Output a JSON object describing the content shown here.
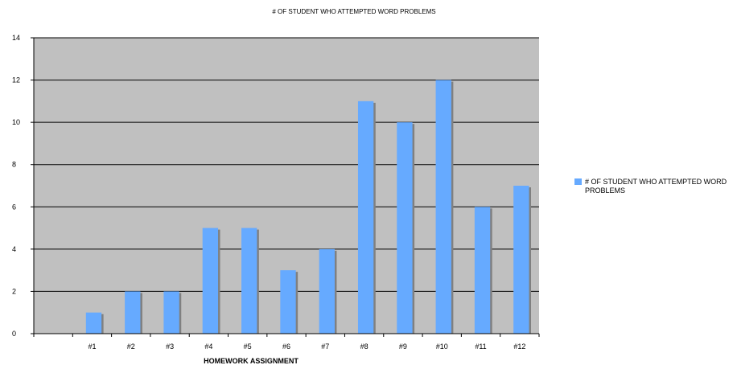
{
  "chart_data": {
    "type": "bar",
    "title": "# OF STUDENT WHO ATTEMPTED WORD PROBLEMS",
    "xlabel": "HOMEWORK ASSIGNMENT",
    "ylabel": "",
    "categories": [
      "",
      "#1",
      "#2",
      "#3",
      "#4",
      "#5",
      "#6",
      "#7",
      "#8",
      "#9",
      "#10",
      "#11",
      "#12"
    ],
    "series": [
      {
        "name": "# OF STUDENT WHO ATTEMPTED WORD PROBLEMS",
        "values": [
          null,
          1,
          2,
          2,
          5,
          5,
          3,
          4,
          11,
          10,
          12,
          6,
          7
        ]
      }
    ],
    "ylim": [
      0,
      14
    ],
    "yticks": [
      "0",
      "2",
      "4",
      "6",
      "8",
      "10",
      "12",
      "14"
    ],
    "grid": true,
    "legend_position": "right",
    "colors": {
      "bar": "#66aaff",
      "bar_shadow": "#808080",
      "plot_background": "#c0c0c0"
    }
  }
}
